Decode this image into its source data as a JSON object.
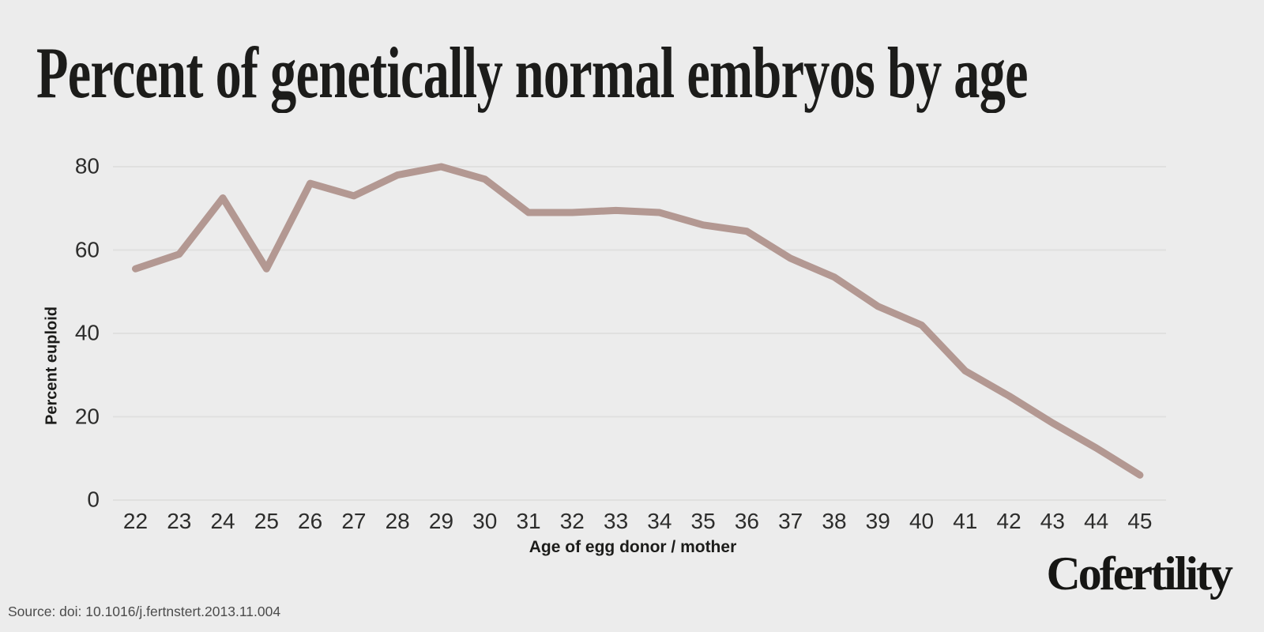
{
  "title": "Percent of genetically normal embryos by age",
  "source": "Source: doi: 10.1016/j.fertnstert.2013.11.004",
  "brand": "Cofertility",
  "colors": {
    "background": "#ececec",
    "line": "#b39892",
    "grid": "#e0e0df",
    "title_text": "#1c1c1a",
    "tick_text": "#2d2d2c",
    "source_text": "#4b4b4b"
  },
  "chart_data": {
    "type": "line",
    "title": "Percent of genetically normal embryos by age",
    "xlabel": "Age of egg donor / mother",
    "ylabel": "Percent euploid",
    "x": [
      22,
      23,
      24,
      25,
      26,
      27,
      28,
      29,
      30,
      31,
      32,
      33,
      34,
      35,
      36,
      37,
      38,
      39,
      40,
      41,
      42,
      43,
      44,
      45
    ],
    "values": [
      55.5,
      59,
      72.5,
      55.5,
      76,
      73,
      78,
      80,
      77,
      69,
      69,
      69.5,
      69,
      66,
      64.5,
      58,
      53.5,
      46.5,
      42,
      31,
      25,
      18.5,
      12.5,
      6
    ],
    "ylim": [
      0,
      85
    ],
    "yticks": [
      0,
      20,
      40,
      60,
      80
    ],
    "grid": true,
    "legend": false,
    "line_color": "#b39892",
    "line_width": 9
  }
}
